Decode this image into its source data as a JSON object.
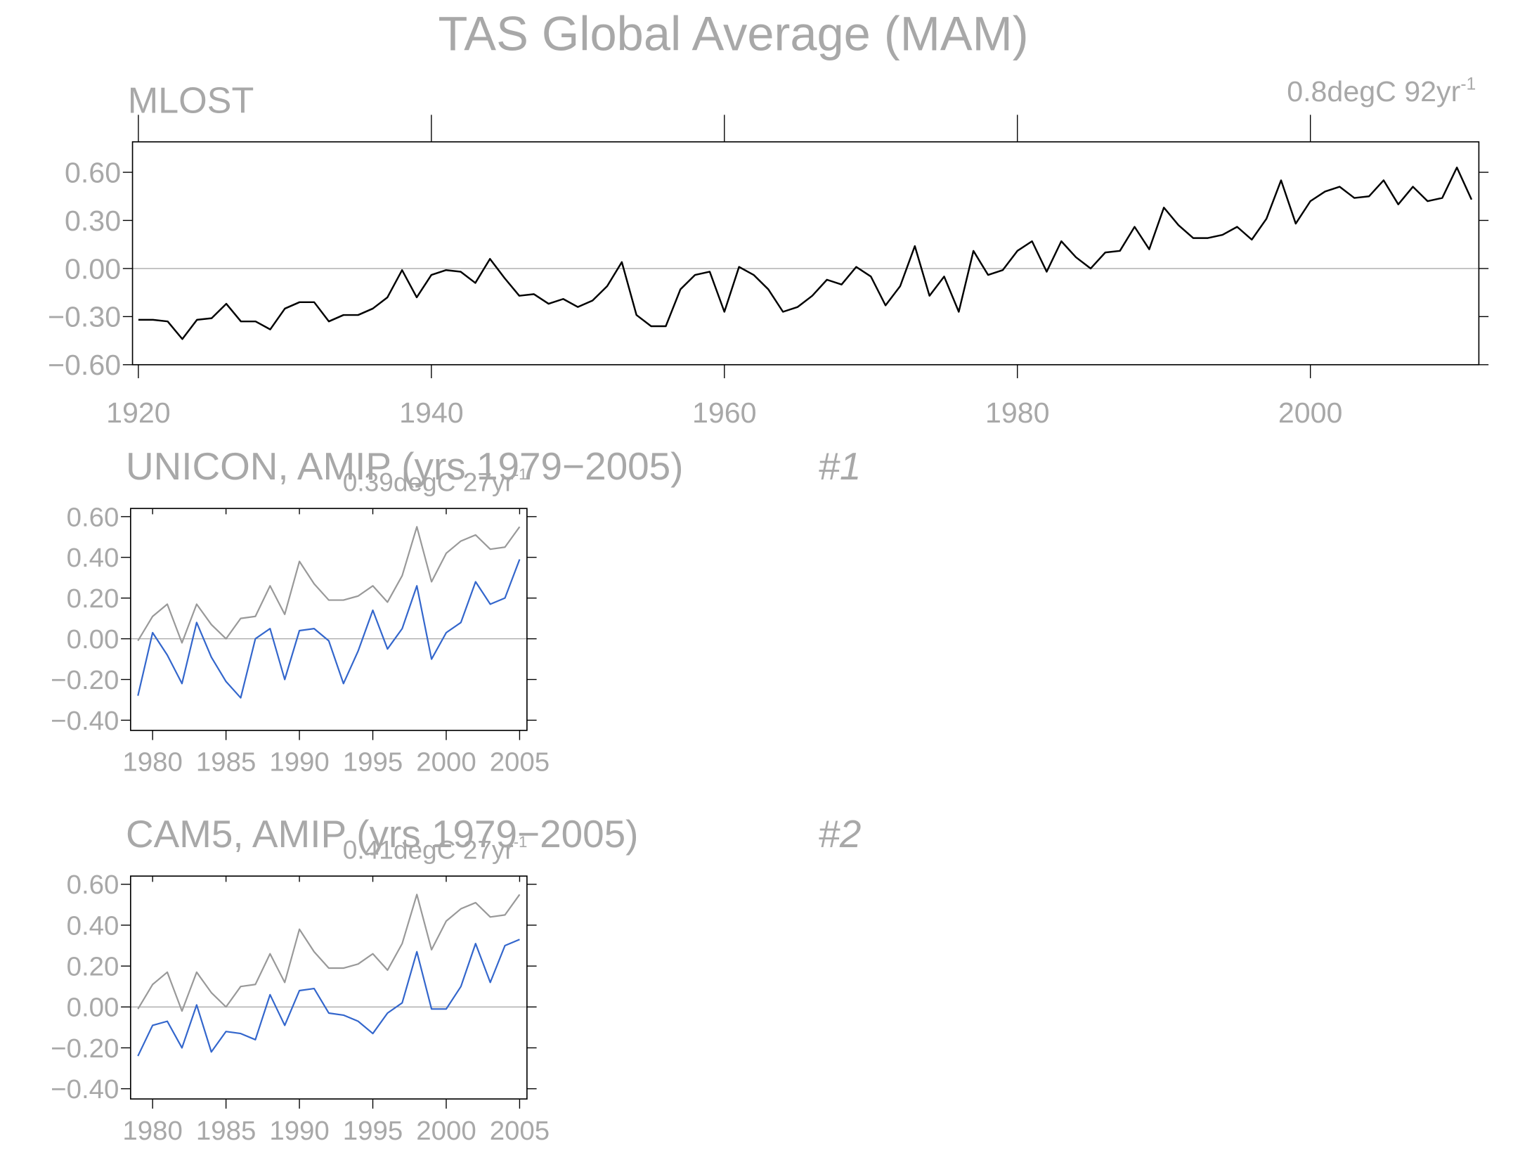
{
  "title": "TAS Global Average (MAM)",
  "chart_data": [
    {
      "type": "line",
      "title": "MLOST",
      "trend": {
        "text": "0.8degC 92yr",
        "sup": "-1"
      },
      "x": [
        1920,
        1921,
        1922,
        1923,
        1924,
        1925,
        1926,
        1927,
        1928,
        1929,
        1930,
        1931,
        1932,
        1933,
        1934,
        1935,
        1936,
        1937,
        1938,
        1939,
        1940,
        1941,
        1942,
        1943,
        1944,
        1945,
        1946,
        1947,
        1948,
        1949,
        1950,
        1951,
        1952,
        1953,
        1954,
        1955,
        1956,
        1957,
        1958,
        1959,
        1960,
        1961,
        1962,
        1963,
        1964,
        1965,
        1966,
        1967,
        1968,
        1969,
        1970,
        1971,
        1972,
        1973,
        1974,
        1975,
        1976,
        1977,
        1978,
        1979,
        1980,
        1981,
        1982,
        1983,
        1984,
        1985,
        1986,
        1987,
        1988,
        1989,
        1990,
        1991,
        1992,
        1993,
        1994,
        1995,
        1996,
        1997,
        1998,
        1999,
        2000,
        2001,
        2002,
        2003,
        2004,
        2005,
        2006,
        2007,
        2008,
        2009,
        2010,
        2011
      ],
      "series": [
        {
          "name": "MLOST",
          "color": "#000000",
          "values": [
            -0.32,
            -0.32,
            -0.33,
            -0.44,
            -0.32,
            -0.31,
            -0.22,
            -0.33,
            -0.33,
            -0.38,
            -0.25,
            -0.21,
            -0.21,
            -0.33,
            -0.29,
            -0.29,
            -0.25,
            -0.18,
            -0.01,
            -0.18,
            -0.04,
            -0.01,
            -0.02,
            -0.09,
            0.06,
            -0.06,
            -0.17,
            -0.16,
            -0.22,
            -0.19,
            -0.24,
            -0.2,
            -0.11,
            0.04,
            -0.29,
            -0.36,
            -0.36,
            -0.13,
            -0.04,
            -0.02,
            -0.27,
            0.01,
            -0.04,
            -0.13,
            -0.27,
            -0.24,
            -0.17,
            -0.07,
            -0.1,
            0.01,
            -0.05,
            -0.23,
            -0.11,
            0.14,
            -0.17,
            -0.05,
            -0.27,
            0.11,
            -0.04,
            -0.01,
            0.11,
            0.17,
            -0.02,
            0.17,
            0.07,
            0.0,
            0.1,
            0.11,
            0.26,
            0.12,
            0.38,
            0.27,
            0.19,
            0.19,
            0.21,
            0.26,
            0.18,
            0.31,
            0.55,
            0.28,
            0.42,
            0.48,
            0.51,
            0.44,
            0.45,
            0.55,
            0.4,
            0.51,
            0.42,
            0.44,
            0.63,
            0.43
          ]
        }
      ],
      "reference_line": 0,
      "xlim": [
        1919.6,
        2011.5
      ],
      "xticks": [
        1920,
        1940,
        1960,
        1980,
        2000
      ],
      "ylim": [
        -0.6,
        0.79
      ],
      "yticks": [
        {
          "value": 0.6,
          "label": "0.60"
        },
        {
          "value": 0.3,
          "label": "0.30"
        },
        {
          "value": 0,
          "label": "0.00"
        },
        {
          "value": -0.3,
          "label": "−0.30"
        },
        {
          "value": -0.6,
          "label": "−0.60"
        }
      ]
    },
    {
      "type": "line",
      "title": "UNICON, AMIP (yrs 1979−2005)",
      "number": "#1",
      "trend": {
        "text": "0.39degC 27yr",
        "sup": "-1"
      },
      "x": [
        1979,
        1980,
        1981,
        1982,
        1983,
        1984,
        1985,
        1986,
        1987,
        1988,
        1989,
        1990,
        1991,
        1992,
        1993,
        1994,
        1995,
        1996,
        1997,
        1998,
        1999,
        2000,
        2001,
        2002,
        2003,
        2004,
        2005
      ],
      "series": [
        {
          "name": "MLOST",
          "color": "#999999",
          "values": [
            -0.01,
            0.11,
            0.17,
            -0.02,
            0.17,
            0.07,
            0.0,
            0.1,
            0.11,
            0.26,
            0.12,
            0.38,
            0.27,
            0.19,
            0.19,
            0.21,
            0.26,
            0.18,
            0.31,
            0.55,
            0.28,
            0.42,
            0.48,
            0.51,
            0.44,
            0.45,
            0.55
          ]
        },
        {
          "name": "UNICON",
          "color": "#3366cc",
          "values": [
            -0.28,
            0.03,
            -0.08,
            -0.22,
            0.08,
            -0.09,
            -0.21,
            -0.29,
            0.0,
            0.05,
            -0.2,
            0.04,
            0.05,
            -0.01,
            -0.22,
            -0.06,
            0.14,
            -0.05,
            0.05,
            0.26,
            -0.1,
            0.03,
            0.08,
            0.28,
            0.17,
            0.2,
            0.39
          ]
        }
      ],
      "reference_line": 0,
      "xlim": [
        1978.5,
        2005.5
      ],
      "xticks": [
        1980,
        1985,
        1990,
        1995,
        2000,
        2005
      ],
      "ylim": [
        -0.45,
        0.64
      ],
      "yticks": [
        {
          "value": 0.6,
          "label": "0.60"
        },
        {
          "value": 0.4,
          "label": "0.40"
        },
        {
          "value": 0.2,
          "label": "0.20"
        },
        {
          "value": 0,
          "label": "0.00"
        },
        {
          "value": -0.2,
          "label": "−0.20"
        },
        {
          "value": -0.4,
          "label": "−0.40"
        }
      ]
    },
    {
      "type": "line",
      "title": "CAM5, AMIP (yrs 1979−2005)",
      "number": "#2",
      "trend": {
        "text": "0.41degC 27yr",
        "sup": "-1"
      },
      "x": [
        1979,
        1980,
        1981,
        1982,
        1983,
        1984,
        1985,
        1986,
        1987,
        1988,
        1989,
        1990,
        1991,
        1992,
        1993,
        1994,
        1995,
        1996,
        1997,
        1998,
        1999,
        2000,
        2001,
        2002,
        2003,
        2004,
        2005
      ],
      "series": [
        {
          "name": "MLOST",
          "color": "#999999",
          "values": [
            -0.01,
            0.11,
            0.17,
            -0.02,
            0.17,
            0.07,
            0.0,
            0.1,
            0.11,
            0.26,
            0.12,
            0.38,
            0.27,
            0.19,
            0.19,
            0.21,
            0.26,
            0.18,
            0.31,
            0.55,
            0.28,
            0.42,
            0.48,
            0.51,
            0.44,
            0.45,
            0.55
          ]
        },
        {
          "name": "CAM5",
          "color": "#3366cc",
          "values": [
            -0.24,
            -0.09,
            -0.07,
            -0.2,
            0.01,
            -0.22,
            -0.12,
            -0.13,
            -0.16,
            0.06,
            -0.09,
            0.08,
            0.09,
            -0.03,
            -0.04,
            -0.07,
            -0.13,
            -0.03,
            0.02,
            0.27,
            -0.01,
            -0.01,
            0.1,
            0.31,
            0.12,
            0.3,
            0.33
          ]
        }
      ],
      "reference_line": 0,
      "xlim": [
        1978.5,
        2005.5
      ],
      "xticks": [
        1980,
        1985,
        1990,
        1995,
        2000,
        2005
      ],
      "ylim": [
        -0.45,
        0.64
      ],
      "yticks": [
        {
          "value": 0.6,
          "label": "0.60"
        },
        {
          "value": 0.4,
          "label": "0.40"
        },
        {
          "value": 0.2,
          "label": "0.20"
        },
        {
          "value": 0,
          "label": "0.00"
        },
        {
          "value": -0.2,
          "label": "−0.20"
        },
        {
          "value": -0.4,
          "label": "−0.40"
        }
      ]
    }
  ]
}
